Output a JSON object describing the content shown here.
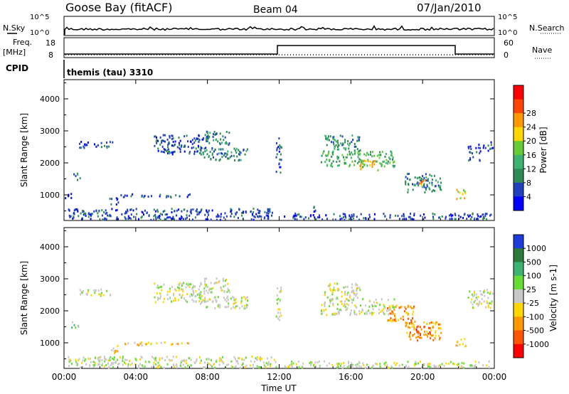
{
  "header": {
    "station": "Goose Bay (fitACF)",
    "beam": "Beam 04",
    "date": "07/Jan/2010"
  },
  "noise_panel": {
    "left_label": "N.Sky",
    "right_label": "N.Search",
    "ticks": [
      "10^5",
      "10^0"
    ]
  },
  "freq_panel": {
    "left_label": "Freq.",
    "left_unit": "[MHz]",
    "left_ticks": [
      "18",
      "8"
    ],
    "right_label": "Nave",
    "right_ticks": [
      "60",
      "0"
    ]
  },
  "cpid_panel": {
    "label": "CPID",
    "program": "themis (tau) 3310"
  },
  "colors": {
    "power_scale": [
      "#0000ff",
      "#2040c0",
      "#2e8b57",
      "#3cb371",
      "#66cc33",
      "#ffd700",
      "#ff9900",
      "#ff4500",
      "#ff0000"
    ],
    "velocity_scale": [
      "#1e3cdc",
      "#2a7a3a",
      "#3cb371",
      "#66dd33",
      "#c8c8c8",
      "#ffd700",
      "#ff9900",
      "#ff5500",
      "#ff0000"
    ]
  },
  "chart_data": [
    {
      "type": "heatmap",
      "name": "power",
      "ylabel": "Slant Range [km]",
      "ytick_labels": [
        "1000",
        "2000",
        "3000",
        "4000"
      ],
      "xtick_labels": [
        "00:00",
        "04:00",
        "08:00",
        "12:00",
        "16:00",
        "20:00",
        "00:00"
      ],
      "colorbar_label": "Power [dB]",
      "colorbar_ticks": [
        "4",
        "8",
        "12",
        "16",
        "20",
        "24",
        "28"
      ],
      "x_range_hours": [
        0,
        24
      ],
      "y_range_km": [
        200,
        4600
      ],
      "regions": [
        {
          "t0": 0.2,
          "t1": 11.8,
          "r0": 250,
          "r1": 600,
          "level": 1
        },
        {
          "t0": 0.0,
          "t1": 0.4,
          "r0": 900,
          "r1": 1100,
          "level": 0
        },
        {
          "t0": 0.4,
          "t1": 0.9,
          "r0": 1500,
          "r1": 1700,
          "level": 2
        },
        {
          "t0": 0.8,
          "t1": 2.8,
          "r0": 2500,
          "r1": 2700,
          "level": 1
        },
        {
          "t0": 2.5,
          "t1": 3.0,
          "r0": 700,
          "r1": 950,
          "level": 1
        },
        {
          "t0": 3.0,
          "t1": 7.0,
          "r0": 950,
          "r1": 1050,
          "level": 1
        },
        {
          "t0": 5.0,
          "t1": 8.0,
          "r0": 2300,
          "r1": 2900,
          "level": 1
        },
        {
          "t0": 7.5,
          "t1": 10.2,
          "r0": 2100,
          "r1": 2500,
          "level": 2
        },
        {
          "t0": 7.8,
          "t1": 9.2,
          "r0": 2600,
          "r1": 3050,
          "level": 2
        },
        {
          "t0": 11.8,
          "t1": 12.1,
          "r0": 1700,
          "r1": 2800,
          "level": 1
        },
        {
          "t0": 13.7,
          "t1": 14.0,
          "r0": 500,
          "r1": 700,
          "level": 1
        },
        {
          "t0": 14.3,
          "t1": 18.4,
          "r0": 1900,
          "r1": 2400,
          "level": 3
        },
        {
          "t0": 14.5,
          "t1": 16.5,
          "r0": 2400,
          "r1": 2900,
          "level": 2
        },
        {
          "t0": 16.5,
          "t1": 17.5,
          "r0": 1800,
          "r1": 2100,
          "level": 5
        },
        {
          "t0": 19.0,
          "t1": 21.0,
          "r0": 1100,
          "r1": 1700,
          "level": 2
        },
        {
          "t0": 19.8,
          "t1": 20.2,
          "r0": 1300,
          "r1": 1500,
          "level": 6
        },
        {
          "t0": 21.8,
          "t1": 22.4,
          "r0": 900,
          "r1": 1200,
          "level": 5
        },
        {
          "t0": 22.5,
          "t1": 23.2,
          "r0": 2100,
          "r1": 2600,
          "level": 1
        },
        {
          "t0": 23.3,
          "t1": 23.9,
          "r0": 2400,
          "r1": 2700,
          "level": 1
        },
        {
          "t0": 12.2,
          "t1": 23.8,
          "r0": 250,
          "r1": 450,
          "level": 1
        }
      ]
    },
    {
      "type": "heatmap",
      "name": "velocity",
      "ylabel": "Slant Range [km]",
      "ytick_labels": [
        "1000",
        "2000",
        "3000",
        "4000"
      ],
      "xtick_labels": [
        "00:00",
        "04:00",
        "08:00",
        "12:00",
        "16:00",
        "20:00",
        "00:00"
      ],
      "xlabel": "Time UT",
      "colorbar_label": "Velocity [m s-1]",
      "colorbar_ticks": [
        "1000",
        "500",
        "100",
        "25",
        "-25",
        "-100",
        "-500",
        "-1000"
      ],
      "x_range_hours": [
        0,
        24
      ],
      "y_range_km": [
        200,
        4600
      ],
      "regions": [
        {
          "t0": 0.2,
          "t1": 11.8,
          "r0": 250,
          "r1": 600,
          "level": 4
        },
        {
          "t0": 0.3,
          "t1": 0.8,
          "r0": 1500,
          "r1": 1700,
          "level": 3
        },
        {
          "t0": 0.8,
          "t1": 2.8,
          "r0": 2500,
          "r1": 2700,
          "level": 4
        },
        {
          "t0": 2.5,
          "t1": 3.0,
          "r0": 700,
          "r1": 950,
          "level": 5
        },
        {
          "t0": 3.0,
          "t1": 7.0,
          "r0": 950,
          "r1": 1050,
          "level": 5
        },
        {
          "t0": 5.0,
          "t1": 8.0,
          "r0": 2300,
          "r1": 2900,
          "level": 4
        },
        {
          "t0": 7.5,
          "t1": 10.2,
          "r0": 2100,
          "r1": 2500,
          "level": 4
        },
        {
          "t0": 7.8,
          "t1": 9.2,
          "r0": 2600,
          "r1": 3050,
          "level": 4
        },
        {
          "t0": 11.8,
          "t1": 12.1,
          "r0": 1700,
          "r1": 2800,
          "level": 4
        },
        {
          "t0": 14.3,
          "t1": 18.4,
          "r0": 1900,
          "r1": 2400,
          "level": 4
        },
        {
          "t0": 14.5,
          "t1": 16.5,
          "r0": 2400,
          "r1": 2900,
          "level": 4
        },
        {
          "t0": 18.0,
          "t1": 19.5,
          "r0": 1700,
          "r1": 2200,
          "level": 6
        },
        {
          "t0": 19.0,
          "t1": 21.0,
          "r0": 1100,
          "r1": 1700,
          "level": 6
        },
        {
          "t0": 19.6,
          "t1": 20.4,
          "r0": 1250,
          "r1": 1550,
          "level": 7
        },
        {
          "t0": 21.8,
          "t1": 22.4,
          "r0": 900,
          "r1": 1200,
          "level": 5
        },
        {
          "t0": 22.5,
          "t1": 23.9,
          "r0": 2100,
          "r1": 2700,
          "level": 4
        },
        {
          "t0": 12.2,
          "t1": 23.8,
          "r0": 250,
          "r1": 450,
          "level": 4
        }
      ]
    }
  ]
}
